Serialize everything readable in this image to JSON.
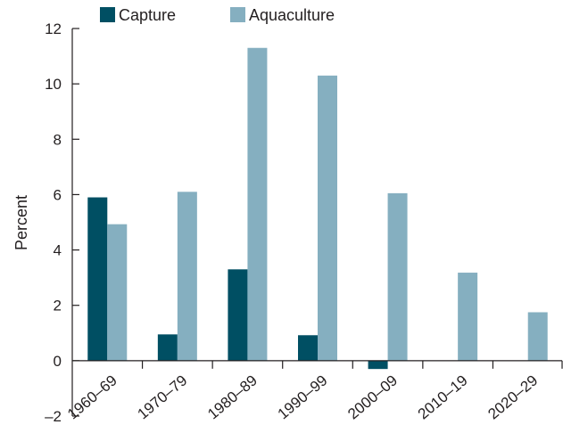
{
  "chart_data": {
    "type": "bar",
    "categories": [
      "1960–69",
      "1970–79",
      "1980–89",
      "1990–99",
      "2000–09",
      "2010–19",
      "2020–29"
    ],
    "series": [
      {
        "name": "Capture",
        "color": "#004f63",
        "values": [
          5.9,
          0.95,
          3.3,
          0.92,
          -0.3,
          0,
          0
        ]
      },
      {
        "name": "Aquaculture",
        "color": "#85afc0",
        "values": [
          4.93,
          6.1,
          11.3,
          10.3,
          6.05,
          3.18,
          1.75
        ]
      }
    ],
    "ylabel": "Percent",
    "ylim": [
      -2,
      12
    ],
    "yticks": [
      -2,
      0,
      2,
      4,
      6,
      8,
      10,
      12
    ],
    "ytick_labels": [
      "–2",
      "0",
      "2",
      "4",
      "6",
      "8",
      "10",
      "12"
    ],
    "grid": false,
    "legend_position": "top-left"
  }
}
